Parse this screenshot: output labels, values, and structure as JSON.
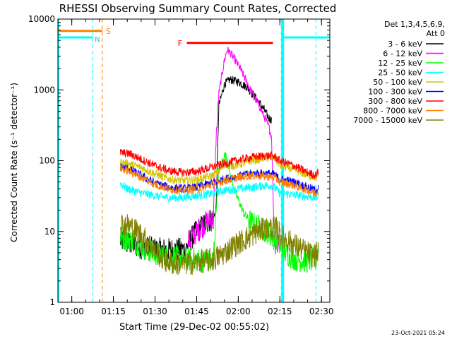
{
  "chart_data": {
    "type": "line",
    "title": "RHESSI Observing Summary Count Rates, Corrected",
    "xlabel": "Start Time (29-Dec-02 00:55:02)",
    "ylabel": "Corrected Count Rate (s⁻¹ detector⁻¹)",
    "yscale": "log",
    "ylim": [
      1,
      10000
    ],
    "xlim_minutes": [
      0,
      98
    ],
    "x_ticks": [
      {
        "label": "01:00",
        "t": 5
      },
      {
        "label": "01:15",
        "t": 20
      },
      {
        "label": "01:30",
        "t": 35
      },
      {
        "label": "01:45",
        "t": 50
      },
      {
        "label": "02:00",
        "t": 65
      },
      {
        "label": "02:15",
        "t": 80
      },
      {
        "label": "02:30",
        "t": 95
      }
    ],
    "y_ticks": [
      {
        "label": "1",
        "v": 1
      },
      {
        "label": "10",
        "v": 10
      },
      {
        "label": "100",
        "v": 100
      },
      {
        "label": "1000",
        "v": 1000
      },
      {
        "label": "10000",
        "v": 10000
      }
    ],
    "legend_header": [
      "Det 1,3,4,5,6,9,",
      "Att 0"
    ],
    "legend_position": "right",
    "series": [
      {
        "name": "3 - 6 keV",
        "color": "#000000",
        "points": [
          [
            22.5,
            7.5
          ],
          [
            30,
            6
          ],
          [
            36,
            5.5
          ],
          [
            42,
            5.5
          ],
          [
            46,
            5.5
          ],
          [
            47,
            7
          ],
          [
            50,
            10
          ],
          [
            54,
            14
          ],
          [
            56,
            15
          ],
          [
            57,
            20
          ],
          [
            58,
            600
          ],
          [
            60,
            1200
          ],
          [
            62,
            1400
          ],
          [
            65,
            1300
          ],
          [
            68,
            1100
          ],
          [
            71,
            800
          ],
          [
            74,
            550
          ],
          [
            76,
            400
          ],
          [
            77,
            380
          ]
        ]
      },
      {
        "name": "6 - 12 keV",
        "color": "#ff00ff",
        "points": [
          [
            47,
            7
          ],
          [
            50,
            10
          ],
          [
            54,
            14
          ],
          [
            56,
            15
          ],
          [
            57,
            200
          ],
          [
            58,
            900
          ],
          [
            60,
            2600
          ],
          [
            61,
            3700
          ],
          [
            62,
            3400
          ],
          [
            64,
            2600
          ],
          [
            66,
            1900
          ],
          [
            68,
            1300
          ],
          [
            70,
            900
          ],
          [
            73,
            550
          ],
          [
            76,
            300
          ],
          [
            77,
            220
          ],
          [
            78,
            7
          ],
          [
            80,
            6.5
          ]
        ]
      },
      {
        "name": "12 - 25 keV",
        "color": "#00ff00",
        "points": [
          [
            22.5,
            8.5
          ],
          [
            28,
            7
          ],
          [
            34,
            5
          ],
          [
            40,
            4.5
          ],
          [
            48,
            4
          ],
          [
            55,
            3.8
          ],
          [
            56,
            4
          ],
          [
            57,
            20
          ],
          [
            58,
            70
          ],
          [
            60,
            120
          ],
          [
            61,
            110
          ],
          [
            62,
            65
          ],
          [
            64,
            35
          ],
          [
            67,
            18
          ],
          [
            70,
            13
          ],
          [
            74,
            11
          ],
          [
            78,
            8
          ],
          [
            82,
            5
          ],
          [
            86,
            4
          ],
          [
            90,
            3.8
          ],
          [
            93,
            4
          ],
          [
            94,
            6
          ]
        ]
      },
      {
        "name": "25 - 50 keV",
        "color": "#00ffff",
        "points": [
          [
            22.5,
            48
          ],
          [
            25,
            40
          ],
          [
            30,
            35
          ],
          [
            35,
            32
          ],
          [
            40,
            30
          ],
          [
            45,
            30
          ],
          [
            50,
            32
          ],
          [
            55,
            34
          ],
          [
            60,
            38
          ],
          [
            65,
            40
          ],
          [
            70,
            42
          ],
          [
            75,
            45
          ],
          [
            77.5,
            44
          ],
          [
            80,
            35
          ],
          [
            85,
            33
          ],
          [
            90,
            31
          ],
          [
            93,
            30
          ],
          [
            94,
            32
          ]
        ]
      },
      {
        "name": "50 - 100 keV",
        "color": "#d4c400",
        "points": [
          [
            22.5,
            95
          ],
          [
            26,
            90
          ],
          [
            30,
            80
          ],
          [
            35,
            65
          ],
          [
            40,
            55
          ],
          [
            45,
            52
          ],
          [
            50,
            54
          ],
          [
            55,
            60
          ],
          [
            58,
            70
          ],
          [
            60,
            90
          ],
          [
            63,
            85
          ],
          [
            66,
            90
          ],
          [
            70,
            100
          ],
          [
            75,
            110
          ],
          [
            78,
            110
          ],
          [
            80,
            85
          ],
          [
            85,
            75
          ],
          [
            90,
            62
          ],
          [
            93,
            58
          ],
          [
            94,
            62
          ]
        ]
      },
      {
        "name": "100 - 300 keV",
        "color": "#0000ff",
        "points": [
          [
            22.5,
            82
          ],
          [
            26,
            75
          ],
          [
            30,
            62
          ],
          [
            35,
            48
          ],
          [
            40,
            42
          ],
          [
            45,
            40
          ],
          [
            50,
            42
          ],
          [
            55,
            48
          ],
          [
            60,
            55
          ],
          [
            65,
            60
          ],
          [
            70,
            66
          ],
          [
            75,
            66
          ],
          [
            78,
            64
          ],
          [
            80,
            55
          ],
          [
            85,
            50
          ],
          [
            90,
            42
          ],
          [
            93,
            38
          ],
          [
            94,
            42
          ]
        ]
      },
      {
        "name": "300 - 800 keV",
        "color": "#ff0000",
        "points": [
          [
            22.5,
            130
          ],
          [
            26,
            125
          ],
          [
            30,
            105
          ],
          [
            35,
            85
          ],
          [
            40,
            72
          ],
          [
            45,
            68
          ],
          [
            50,
            70
          ],
          [
            55,
            80
          ],
          [
            60,
            90
          ],
          [
            65,
            102
          ],
          [
            70,
            112
          ],
          [
            75,
            118
          ],
          [
            78,
            115
          ],
          [
            80,
            100
          ],
          [
            85,
            85
          ],
          [
            90,
            68
          ],
          [
            93,
            62
          ],
          [
            94,
            72
          ]
        ]
      },
      {
        "name": "800 - 7000 keV",
        "color": "#ff8000",
        "points": [
          [
            22.5,
            78
          ],
          [
            26,
            70
          ],
          [
            30,
            58
          ],
          [
            35,
            46
          ],
          [
            40,
            40
          ],
          [
            45,
            38
          ],
          [
            50,
            40
          ],
          [
            55,
            45
          ],
          [
            60,
            52
          ],
          [
            65,
            58
          ],
          [
            70,
            62
          ],
          [
            75,
            60
          ],
          [
            78,
            58
          ],
          [
            80,
            50
          ],
          [
            85,
            45
          ],
          [
            90,
            38
          ],
          [
            93,
            34
          ],
          [
            94,
            38
          ]
        ]
      },
      {
        "name": "7000 - 15000 keV",
        "color": "#808000",
        "points": [
          [
            22.5,
            13
          ],
          [
            26,
            12
          ],
          [
            30,
            9
          ],
          [
            34,
            6
          ],
          [
            38,
            4
          ],
          [
            42,
            3.5
          ],
          [
            48,
            3.6
          ],
          [
            52,
            3.8
          ],
          [
            56,
            4
          ],
          [
            60,
            5
          ],
          [
            64,
            6.5
          ],
          [
            68,
            8
          ],
          [
            72,
            10
          ],
          [
            76,
            11
          ],
          [
            79,
            11
          ],
          [
            80,
            9
          ],
          [
            84,
            7
          ],
          [
            88,
            5.5
          ],
          [
            92,
            4.5
          ],
          [
            94,
            5
          ]
        ]
      }
    ],
    "annotations": {
      "N_label": "N",
      "S_label": "S",
      "F_label": "F",
      "night_segments": [
        [
          0,
          12.5
        ],
        [
          80.5,
          98
        ]
      ],
      "night_level": 5500,
      "saa_segment": [
        0,
        16
      ],
      "saa_level": 6800,
      "flare_segment": [
        46.5,
        77.5
      ],
      "flare_level": 4600,
      "vlines_cyan": [
        12.5,
        80.5,
        93
      ],
      "vline_orange": 16,
      "shading_cyan_x": [
        80.5,
        81.5
      ]
    }
  },
  "footer_date": "23-Oct-2021 05:24",
  "colors": {
    "night": "#00ffff",
    "saa": "#ff8000",
    "flare": "#ff0000"
  }
}
